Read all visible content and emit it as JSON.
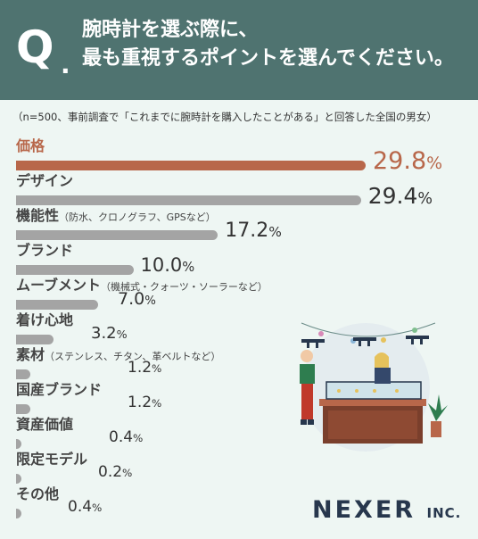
{
  "header": {
    "q_letter": "Q",
    "q_dot": ".",
    "question_line1": "腕時計を選ぶ際に、",
    "question_line2": "最も重視するポイントを選んでください。"
  },
  "note": "（n=500、事前調査で「これまでに腕時計を購入したことがある」と回答した全国の男女）",
  "colors": {
    "header_bg": "#4f7370",
    "accent": "#b8674a",
    "bar": "#a4a4a4",
    "background": "#eef6f3"
  },
  "chart_data": {
    "type": "bar",
    "orientation": "horizontal",
    "unit": "%",
    "categories": [
      "価格",
      "デザイン",
      "機能性",
      "ブランド",
      "ムーブメント",
      "着け心地",
      "素材",
      "国産ブランド",
      "資産価値",
      "限定モデル",
      "その他"
    ],
    "category_notes": [
      "",
      "",
      "（防水、クロノグラフ、GPSなど）",
      "",
      "（機械式・クォーツ・ソーラーなど）",
      "",
      "（ステンレス、チタン、革ベルトなど）",
      "",
      "",
      "",
      ""
    ],
    "values": [
      29.8,
      29.4,
      17.2,
      10.0,
      7.0,
      3.2,
      1.2,
      1.2,
      0.4,
      0.2,
      0.4
    ],
    "value_labels": [
      "29.8",
      "29.4",
      "17.2",
      "10.0",
      "7.0",
      "3.2",
      "1.2",
      "1.2",
      "0.4",
      "0.2",
      "0.4"
    ],
    "highlight_index": 0
  },
  "logo": {
    "name": "NEXER",
    "suffix": "INC."
  }
}
